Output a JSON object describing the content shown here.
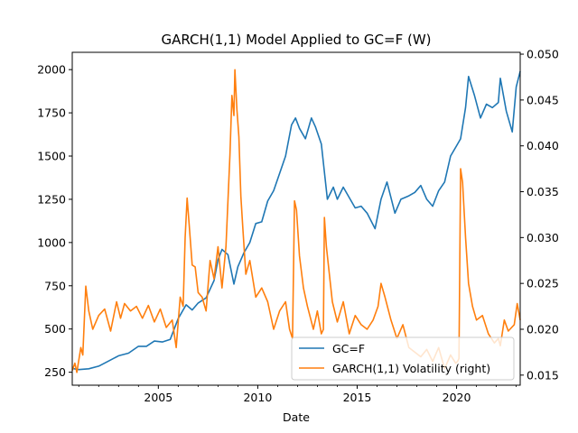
{
  "chart_data": {
    "type": "line",
    "title": "GARCH(1,1) Model Applied to GC=F (W)",
    "xlabel": "Date",
    "ylabel": "",
    "ylabel_right": "",
    "xlim": [
      2000.67,
      2023.2
    ],
    "ylim": [
      175,
      2100
    ],
    "ylim_right": [
      0.0139,
      0.0502
    ],
    "x_ticks": [
      2005,
      2010,
      2015,
      2020
    ],
    "x_tick_labels": [
      "2005",
      "2010",
      "2015",
      "2020"
    ],
    "y_ticks": [
      250,
      500,
      750,
      1000,
      1250,
      1500,
      1750,
      2000
    ],
    "y_tick_labels": [
      "250",
      "500",
      "750",
      "1000",
      "1250",
      "1500",
      "1750",
      "2000"
    ],
    "y_right_ticks": [
      0.015,
      0.02,
      0.025,
      0.03,
      0.035,
      0.04,
      0.045,
      0.05
    ],
    "y_right_tick_labels": [
      "0.015",
      "0.020",
      "0.025",
      "0.030",
      "0.035",
      "0.040",
      "0.045",
      "0.050"
    ],
    "legend": {
      "placement": "lower right"
    },
    "series": [
      {
        "name": "GC=F",
        "axis": "left",
        "color": "#1f77b4",
        "x": [
          2000.67,
          2001.0,
          2001.5,
          2002.0,
          2002.5,
          2003.0,
          2003.5,
          2004.0,
          2004.4,
          2004.8,
          2005.2,
          2005.6,
          2006.0,
          2006.4,
          2006.7,
          2007.0,
          2007.4,
          2007.8,
          2008.0,
          2008.2,
          2008.5,
          2008.8,
          2009.0,
          2009.3,
          2009.6,
          2009.9,
          2010.2,
          2010.5,
          2010.8,
          2011.1,
          2011.4,
          2011.7,
          2011.9,
          2012.1,
          2012.4,
          2012.7,
          2012.9,
          2013.2,
          2013.5,
          2013.8,
          2014.0,
          2014.3,
          2014.6,
          2014.9,
          2015.2,
          2015.5,
          2015.9,
          2016.2,
          2016.5,
          2016.9,
          2017.2,
          2017.6,
          2017.9,
          2018.2,
          2018.5,
          2018.8,
          2019.1,
          2019.4,
          2019.7,
          2020.0,
          2020.2,
          2020.45,
          2020.6,
          2020.9,
          2021.2,
          2021.5,
          2021.8,
          2022.1,
          2022.2,
          2022.5,
          2022.8,
          2023.0,
          2023.2
        ],
        "y": [
          272,
          265,
          270,
          285,
          315,
          345,
          360,
          400,
          400,
          430,
          425,
          440,
          560,
          640,
          610,
          650,
          680,
          780,
          900,
          960,
          930,
          760,
          860,
          940,
          1000,
          1110,
          1120,
          1240,
          1300,
          1400,
          1500,
          1680,
          1720,
          1660,
          1600,
          1720,
          1670,
          1570,
          1250,
          1320,
          1250,
          1320,
          1260,
          1200,
          1210,
          1170,
          1080,
          1250,
          1350,
          1170,
          1250,
          1270,
          1290,
          1330,
          1250,
          1210,
          1300,
          1350,
          1500,
          1560,
          1600,
          1780,
          1960,
          1850,
          1720,
          1800,
          1780,
          1810,
          1950,
          1760,
          1640,
          1900,
          1990
        ]
      },
      {
        "name": "GARCH(1,1) Volatility (right)",
        "axis": "right",
        "color": "#ff7f0e",
        "x": [
          2000.67,
          2000.8,
          2000.9,
          2001.1,
          2001.2,
          2001.35,
          2001.5,
          2001.7,
          2002.0,
          2002.3,
          2002.6,
          2002.9,
          2003.1,
          2003.3,
          2003.6,
          2003.9,
          2004.2,
          2004.5,
          2004.8,
          2005.1,
          2005.4,
          2005.7,
          2005.9,
          2006.1,
          2006.25,
          2006.35,
          2006.45,
          2006.55,
          2006.7,
          2006.85,
          2007.0,
          2007.2,
          2007.4,
          2007.6,
          2007.8,
          2008.0,
          2008.2,
          2008.4,
          2008.6,
          2008.7,
          2008.8,
          2008.85,
          2008.95,
          2009.05,
          2009.15,
          2009.25,
          2009.4,
          2009.6,
          2009.9,
          2010.2,
          2010.5,
          2010.8,
          2011.1,
          2011.4,
          2011.6,
          2011.75,
          2011.85,
          2011.95,
          2012.1,
          2012.3,
          2012.5,
          2012.8,
          2013.0,
          2013.2,
          2013.3,
          2013.35,
          2013.45,
          2013.55,
          2013.75,
          2014.0,
          2014.3,
          2014.6,
          2014.9,
          2015.2,
          2015.5,
          2015.8,
          2016.05,
          2016.2,
          2016.4,
          2016.7,
          2017.0,
          2017.3,
          2017.6,
          2017.9,
          2018.2,
          2018.5,
          2018.8,
          2019.1,
          2019.4,
          2019.7,
          2019.95,
          2020.05,
          2020.12,
          2020.2,
          2020.3,
          2020.45,
          2020.6,
          2020.8,
          2021.0,
          2021.3,
          2021.6,
          2021.9,
          2022.1,
          2022.2,
          2022.4,
          2022.6,
          2022.9,
          2023.05,
          2023.2
        ],
        "y": [
          0.0155,
          0.0163,
          0.0153,
          0.018,
          0.0172,
          0.0247,
          0.022,
          0.02,
          0.0215,
          0.0222,
          0.0198,
          0.023,
          0.0212,
          0.0228,
          0.022,
          0.0225,
          0.0212,
          0.0226,
          0.0208,
          0.0222,
          0.0202,
          0.021,
          0.018,
          0.0235,
          0.0225,
          0.03,
          0.0343,
          0.0315,
          0.027,
          0.0268,
          0.024,
          0.0235,
          0.022,
          0.0275,
          0.0255,
          0.029,
          0.0245,
          0.029,
          0.039,
          0.0455,
          0.0433,
          0.0483,
          0.044,
          0.041,
          0.0345,
          0.031,
          0.026,
          0.0275,
          0.0235,
          0.0245,
          0.023,
          0.02,
          0.022,
          0.023,
          0.02,
          0.019,
          0.034,
          0.033,
          0.028,
          0.0245,
          0.0225,
          0.02,
          0.022,
          0.0195,
          0.02,
          0.0322,
          0.029,
          0.027,
          0.023,
          0.0208,
          0.023,
          0.0195,
          0.0215,
          0.0205,
          0.02,
          0.021,
          0.0225,
          0.025,
          0.0235,
          0.021,
          0.019,
          0.0205,
          0.018,
          0.0175,
          0.017,
          0.0178,
          0.0165,
          0.018,
          0.0157,
          0.0172,
          0.0163,
          0.0165,
          0.0168,
          0.0375,
          0.036,
          0.03,
          0.025,
          0.0225,
          0.021,
          0.0215,
          0.0195,
          0.0185,
          0.019,
          0.0182,
          0.021,
          0.0198,
          0.0205,
          0.0228,
          0.021
        ]
      }
    ]
  }
}
